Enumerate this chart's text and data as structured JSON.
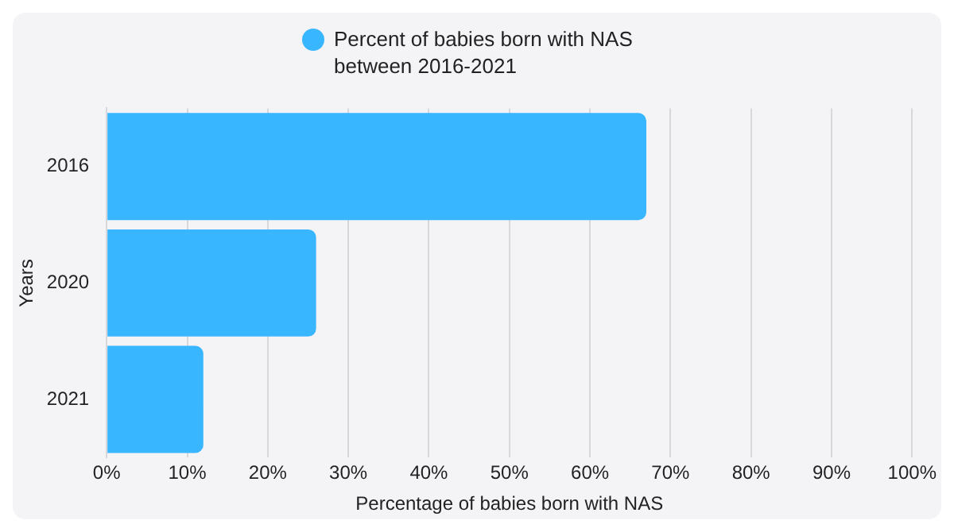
{
  "chart_data": {
    "type": "bar",
    "orientation": "horizontal",
    "xlabel": "Percentage of babies born with NAS",
    "ylabel": "Years",
    "categories": [
      "2016",
      "2020",
      "2021"
    ],
    "series": [
      {
        "name": "Percent of babies born with NAS between 2016-2021",
        "color": "#38b6ff",
        "values": [
          67,
          26,
          12
        ]
      }
    ],
    "xlim": [
      0,
      100
    ],
    "xticks": [
      {
        "value": 0,
        "label": "0%"
      },
      {
        "value": 10,
        "label": "10%"
      },
      {
        "value": 20,
        "label": "20%"
      },
      {
        "value": 30,
        "label": "30%"
      },
      {
        "value": 40,
        "label": "40%"
      },
      {
        "value": 50,
        "label": "50%"
      },
      {
        "value": 60,
        "label": "60%"
      },
      {
        "value": 70,
        "label": "70%"
      },
      {
        "value": 80,
        "label": "80%"
      },
      {
        "value": 90,
        "label": "90%"
      },
      {
        "value": 100,
        "label": "100%"
      }
    ],
    "grid": "x",
    "legend": "top"
  }
}
